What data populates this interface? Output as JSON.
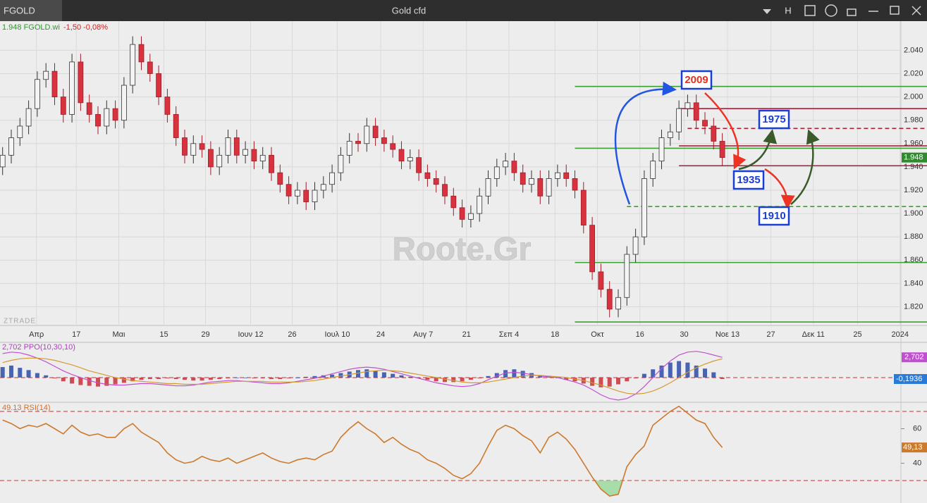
{
  "window": {
    "symbol": "FGOLD",
    "title": "Gold cfd",
    "buttons": [
      "H"
    ]
  },
  "watermark": "Roote.Gr",
  "brand": "ZTRADE",
  "chart_data": [
    {
      "type": "candlestick",
      "info": [
        {
          "text": "1.948 FGOLD.wi",
          "color": "#2a9a2a"
        },
        {
          "text": "-1,50 -0,08%",
          "color": "#d02020"
        }
      ],
      "open": [
        1.94,
        1.95,
        1.965,
        1.975,
        1.99,
        2.015,
        2.022,
        2.0,
        1.985,
        2.03,
        1.995,
        1.985,
        1.975,
        1.99,
        1.98,
        2.01,
        2.045,
        2.03,
        2.02,
        2.0,
        1.985,
        1.965,
        1.95,
        1.96,
        1.955,
        1.94,
        1.95,
        1.965,
        1.95,
        1.955,
        1.945,
        1.95,
        1.935,
        1.925,
        1.915,
        1.92,
        1.91,
        1.92,
        1.925,
        1.935,
        1.95,
        1.962,
        1.96,
        1.975,
        1.965,
        1.96,
        1.955,
        1.945,
        1.948,
        1.935,
        1.93,
        1.925,
        1.915,
        1.905,
        1.895,
        1.9,
        1.915,
        1.93,
        1.94,
        1.945,
        1.935,
        1.925,
        1.93,
        1.915,
        1.93,
        1.935,
        1.93,
        1.92,
        1.89,
        1.85,
        1.835,
        1.818,
        1.828,
        1.865,
        1.88,
        1.93,
        1.945,
        1.965,
        1.97,
        1.99,
        1.995,
        1.98,
        1.975,
        1.962
      ],
      "high": [
        1.957,
        1.972,
        1.982,
        1.997,
        2.022,
        2.029,
        2.029,
        2.007,
        2.037,
        2.037,
        2.002,
        1.992,
        1.997,
        1.997,
        2.017,
        2.052,
        2.052,
        2.037,
        2.027,
        2.007,
        1.992,
        1.972,
        1.967,
        1.967,
        1.962,
        1.957,
        1.972,
        1.972,
        1.962,
        1.962,
        1.957,
        1.957,
        1.942,
        1.932,
        1.927,
        1.927,
        1.927,
        1.932,
        1.942,
        1.957,
        1.969,
        1.969,
        1.982,
        1.982,
        1.972,
        1.967,
        1.962,
        1.955,
        1.955,
        1.942,
        1.937,
        1.932,
        1.922,
        1.912,
        1.907,
        1.922,
        1.937,
        1.947,
        1.952,
        1.952,
        1.942,
        1.937,
        1.937,
        1.937,
        1.942,
        1.942,
        1.937,
        1.927,
        1.897,
        1.857,
        1.842,
        1.835,
        1.872,
        1.887,
        1.937,
        1.952,
        1.972,
        1.977,
        1.997,
        2.002,
        2.002,
        1.987,
        1.982,
        1.969
      ],
      "low": [
        1.933,
        1.943,
        1.958,
        1.968,
        1.983,
        2.008,
        1.993,
        1.978,
        1.978,
        1.988,
        1.978,
        1.968,
        1.968,
        1.973,
        1.973,
        2.003,
        2.023,
        2.013,
        1.993,
        1.978,
        1.958,
        1.943,
        1.943,
        1.948,
        1.933,
        1.933,
        1.943,
        1.943,
        1.943,
        1.938,
        1.938,
        1.928,
        1.918,
        1.908,
        1.908,
        1.903,
        1.903,
        1.913,
        1.918,
        1.928,
        1.943,
        1.953,
        1.953,
        1.958,
        1.953,
        1.948,
        1.938,
        1.938,
        1.928,
        1.923,
        1.918,
        1.908,
        1.898,
        1.888,
        1.888,
        1.893,
        1.908,
        1.923,
        1.933,
        1.928,
        1.918,
        1.918,
        1.908,
        1.908,
        1.923,
        1.923,
        1.913,
        1.883,
        1.843,
        1.828,
        1.811,
        1.811,
        1.821,
        1.858,
        1.873,
        1.923,
        1.938,
        1.958,
        1.963,
        1.983,
        1.973,
        1.968,
        1.955,
        1.941
      ],
      "close": [
        1.95,
        1.965,
        1.975,
        1.99,
        2.015,
        2.022,
        2.0,
        1.985,
        2.03,
        1.995,
        1.985,
        1.975,
        1.99,
        1.98,
        2.01,
        2.045,
        2.03,
        2.02,
        2.0,
        1.985,
        1.965,
        1.95,
        1.96,
        1.955,
        1.94,
        1.95,
        1.965,
        1.95,
        1.955,
        1.945,
        1.95,
        1.935,
        1.925,
        1.915,
        1.92,
        1.91,
        1.92,
        1.925,
        1.935,
        1.95,
        1.962,
        1.96,
        1.975,
        1.965,
        1.96,
        1.955,
        1.945,
        1.948,
        1.935,
        1.93,
        1.925,
        1.915,
        1.905,
        1.895,
        1.9,
        1.915,
        1.93,
        1.94,
        1.945,
        1.935,
        1.925,
        1.93,
        1.915,
        1.93,
        1.935,
        1.93,
        1.92,
        1.89,
        1.85,
        1.835,
        1.818,
        1.828,
        1.865,
        1.88,
        1.93,
        1.945,
        1.965,
        1.97,
        1.99,
        1.995,
        1.98,
        1.975,
        1.962,
        1.948
      ],
      "up_color": "#f4f4f4",
      "down_color": "#d8323e",
      "last_label": "1.948",
      "last_color": "#2e8b2e",
      "xlim": [
        -0.3,
        103.6
      ],
      "xticks": [
        {
          "value": 3.9,
          "label": "Απρ"
        },
        {
          "value": 8.5,
          "label": "17"
        },
        {
          "value": 13.4,
          "label": "Μαι"
        },
        {
          "value": 18.6,
          "label": "15"
        },
        {
          "value": 23.4,
          "label": "29"
        },
        {
          "value": 28.6,
          "label": "Ιουν 12"
        },
        {
          "value": 33.4,
          "label": "26"
        },
        {
          "value": 38.6,
          "label": "Ιουλ 10"
        },
        {
          "value": 43.6,
          "label": "24"
        },
        {
          "value": 48.5,
          "label": "Αυγ 7"
        },
        {
          "value": 53.5,
          "label": "21"
        },
        {
          "value": 58.4,
          "label": "Σεπ 4"
        },
        {
          "value": 63.7,
          "label": "18"
        },
        {
          "value": 68.6,
          "label": "Οκτ"
        },
        {
          "value": 73.5,
          "label": "16"
        },
        {
          "value": 78.6,
          "label": "30"
        },
        {
          "value": 83.6,
          "label": "Νοε 13"
        },
        {
          "value": 88.6,
          "label": "27"
        },
        {
          "value": 93.5,
          "label": "Δεκ 11"
        },
        {
          "value": 98.6,
          "label": "25"
        },
        {
          "value": 103.5,
          "label": "2024"
        }
      ],
      "ylim": [
        1.804,
        2.065
      ],
      "yticks": [
        {
          "value": 1.82,
          "label": "1.820"
        },
        {
          "value": 1.84,
          "label": "1.840"
        },
        {
          "value": 1.86,
          "label": "1.860"
        },
        {
          "value": 1.88,
          "label": "1.880"
        },
        {
          "value": 1.9,
          "label": "1.900"
        },
        {
          "value": 1.92,
          "label": "1.920"
        },
        {
          "value": 1.94,
          "label": "1.940"
        },
        {
          "value": 1.96,
          "label": "1.960"
        },
        {
          "value": 1.98,
          "label": "1.980"
        },
        {
          "value": 2.0,
          "label": "2.000"
        },
        {
          "value": 2.02,
          "label": "2.020"
        },
        {
          "value": 2.04,
          "label": "2.040"
        }
      ],
      "grid": true,
      "levels": [
        {
          "value": 2.009,
          "color": "#3aa02f",
          "dashed": false,
          "from": 66
        },
        {
          "value": 1.99,
          "color": "#a8203a",
          "dashed": false,
          "from": 78
        },
        {
          "value": 1.973,
          "color": "#a8203a",
          "dashed": true,
          "from": 79
        },
        {
          "value": 1.956,
          "color": "#3aa02f",
          "dashed": false,
          "from": 66
        },
        {
          "value": 1.958,
          "color": "#a8203a",
          "dashed": false,
          "from": 78
        },
        {
          "value": 1.941,
          "color": "#a8203a",
          "dashed": false,
          "from": 78
        },
        {
          "value": 1.906,
          "color": "#3aa02f",
          "dashed": true,
          "from": 72
        },
        {
          "value": 1.858,
          "color": "#3aa02f",
          "dashed": false,
          "from": 66
        },
        {
          "value": 1.807,
          "color": "#3aa02f",
          "dashed": false,
          "from": 66
        }
      ],
      "annotations": [
        {
          "text": "2009",
          "color": "#e8301c"
        },
        {
          "text": "1975",
          "color": "#1a3fd0"
        },
        {
          "text": "1935",
          "color": "#1a3fd0"
        },
        {
          "text": "1910",
          "color": "#1a3fd0"
        }
      ]
    },
    {
      "type": "ppo",
      "label": "2,702 PPO(10,30,10)",
      "label_color": "#b040c0",
      "ylim": [
        -3.2,
        4.6
      ],
      "histogram": {
        "values": [
          1.4,
          1.6,
          1.3,
          1.0,
          0.6,
          0.3,
          -0.1,
          -0.5,
          -0.8,
          -1.0,
          -1.1,
          -1.2,
          -1.1,
          -0.9,
          -0.7,
          -0.5,
          -0.3,
          -0.2,
          -0.2,
          -0.1,
          -0.2,
          -0.3,
          -0.4,
          -0.4,
          -0.3,
          -0.2,
          -0.1,
          0.0,
          0.0,
          -0.1,
          -0.1,
          -0.2,
          -0.2,
          -0.1,
          0.0,
          0.1,
          0.2,
          0.3,
          0.4,
          0.6,
          0.8,
          1.0,
          1.1,
          0.9,
          0.7,
          0.5,
          0.3,
          0.1,
          -0.1,
          -0.3,
          -0.5,
          -0.6,
          -0.6,
          -0.5,
          -0.3,
          -0.1,
          0.2,
          0.6,
          1.0,
          1.1,
          0.9,
          0.6,
          0.3,
          0.1,
          0.0,
          -0.3,
          -0.5,
          -0.8,
          -1.1,
          -1.3,
          -1.2,
          -0.9,
          -0.5,
          -0.1,
          0.5,
          1.1,
          1.6,
          2.0,
          2.2,
          2.0,
          1.6,
          1.2,
          0.7,
          -0.1936
        ],
        "up_color": "#2a4aa8",
        "down_color": "#c8303a",
        "last_label": "-0,1936",
        "last_color": "#2a7ad8"
      },
      "lines": [
        {
          "color": "#c050d0",
          "last_label": "2,702",
          "values": [
            3.2,
            3.4,
            3.3,
            3.0,
            2.6,
            2.1,
            1.5,
            0.9,
            0.4,
            0.0,
            -0.4,
            -0.7,
            -0.9,
            -1.0,
            -1.0,
            -0.9,
            -0.8,
            -0.8,
            -0.9,
            -1.0,
            -1.1,
            -1.1,
            -1.0,
            -0.8,
            -0.6,
            -0.5,
            -0.4,
            -0.4,
            -0.5,
            -0.6,
            -0.7,
            -0.8,
            -0.8,
            -0.7,
            -0.5,
            -0.3,
            -0.1,
            0.2,
            0.5,
            0.8,
            1.1,
            1.3,
            1.4,
            1.3,
            1.1,
            0.8,
            0.5,
            0.2,
            -0.1,
            -0.4,
            -0.7,
            -0.9,
            -1.1,
            -1.2,
            -1.1,
            -0.8,
            -0.3,
            0.2,
            0.6,
            0.7,
            0.6,
            0.4,
            0.2,
            0.1,
            0.0,
            -0.3,
            -0.6,
            -1.0,
            -1.6,
            -2.3,
            -2.8,
            -3.0,
            -2.8,
            -2.2,
            -1.2,
            0.0,
            1.2,
            2.2,
            3.0,
            3.4,
            3.5,
            3.3,
            3.0,
            2.702
          ]
        },
        {
          "color": "#d49a30",
          "values": [
            2.0,
            2.3,
            2.5,
            2.6,
            2.6,
            2.5,
            2.3,
            2.0,
            1.7,
            1.3,
            0.9,
            0.6,
            0.3,
            0.0,
            -0.2,
            -0.4,
            -0.5,
            -0.6,
            -0.7,
            -0.8,
            -0.8,
            -0.9,
            -0.9,
            -0.9,
            -0.8,
            -0.7,
            -0.6,
            -0.5,
            -0.5,
            -0.5,
            -0.5,
            -0.6,
            -0.6,
            -0.6,
            -0.6,
            -0.5,
            -0.4,
            -0.2,
            0.0,
            0.2,
            0.4,
            0.6,
            0.8,
            0.9,
            1.0,
            0.9,
            0.8,
            0.6,
            0.4,
            0.2,
            0.0,
            -0.2,
            -0.4,
            -0.6,
            -0.7,
            -0.7,
            -0.6,
            -0.4,
            -0.2,
            0.0,
            0.2,
            0.3,
            0.3,
            0.2,
            0.1,
            0.0,
            -0.2,
            -0.4,
            -0.7,
            -1.0,
            -1.4,
            -1.8,
            -2.1,
            -2.2,
            -2.1,
            -1.8,
            -1.3,
            -0.7,
            0.0,
            0.7,
            1.3,
            1.8,
            2.2,
            2.5
          ]
        }
      ],
      "zero_color": "#c8303a"
    },
    {
      "type": "line",
      "label": "49.13 RSI(14)",
      "label_color": "#d0702a",
      "color": "#cc7a2e",
      "values": [
        65,
        63,
        60,
        62,
        61,
        63,
        60,
        57,
        62,
        58,
        56,
        57,
        55,
        55,
        60,
        63,
        58,
        55,
        52,
        46,
        42,
        40,
        41,
        44,
        42,
        41,
        43,
        40,
        42,
        44,
        46,
        43,
        41,
        40,
        42,
        43,
        42,
        45,
        47,
        55,
        60,
        64,
        60,
        57,
        52,
        55,
        51,
        48,
        46,
        42,
        40,
        37,
        33,
        31,
        34,
        40,
        50,
        59,
        62,
        60,
        56,
        53,
        46,
        55,
        58,
        54,
        48,
        40,
        32,
        25,
        21,
        22,
        38,
        45,
        50,
        62,
        66,
        70,
        73,
        69,
        65,
        63,
        55,
        49.13
      ],
      "last_label": "49,13",
      "ylim": [
        17.8,
        74.9
      ],
      "yticks": [
        40,
        60
      ],
      "levels": [
        70,
        30
      ],
      "level_color": "#c8303a",
      "oversold_fill": "#a8dca8"
    }
  ]
}
